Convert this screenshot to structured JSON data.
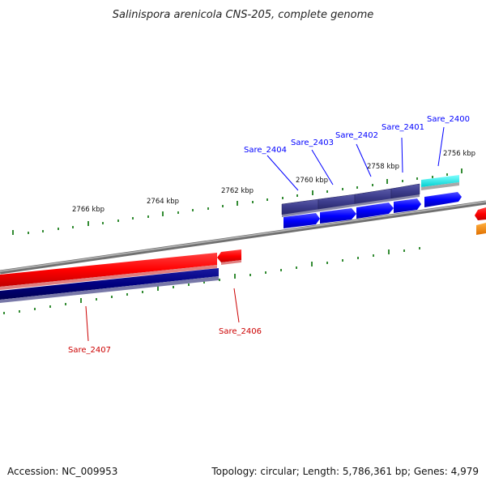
{
  "title": "Salinispora arenicola CNS-205, complete genome",
  "footer": {
    "accession": "Accession: NC_009953",
    "summary": "Topology: circular; Length: 5,786,361 bp; Genes: 4,979"
  },
  "colors": {
    "forward_gene": "#0000ff",
    "forward_cds": "#3c3c8c",
    "reverse_gene": "#ff0000",
    "reverse_cds": "#000080",
    "rna": "#00e5e5",
    "tick": "#007000",
    "backbone": "#808080"
  },
  "kbp_labels": [
    "2756 kbp",
    "2758 kbp",
    "2760 kbp",
    "2762 kbp",
    "2764 kbp",
    "2766 kbp"
  ],
  "genes": [
    {
      "id": "Sare_2400",
      "strand": "forward",
      "color": "#0000ff"
    },
    {
      "id": "Sare_2401",
      "strand": "forward",
      "color": "#0000ff"
    },
    {
      "id": "Sare_2402",
      "strand": "forward",
      "color": "#0000ff"
    },
    {
      "id": "Sare_2403",
      "strand": "forward",
      "color": "#0000ff"
    },
    {
      "id": "Sare_2404",
      "strand": "forward",
      "color": "#0000ff"
    },
    {
      "id": "Sare_2406",
      "strand": "reverse",
      "color": "#cc0000"
    },
    {
      "id": "Sare_2407",
      "strand": "reverse",
      "color": "#cc0000"
    }
  ]
}
